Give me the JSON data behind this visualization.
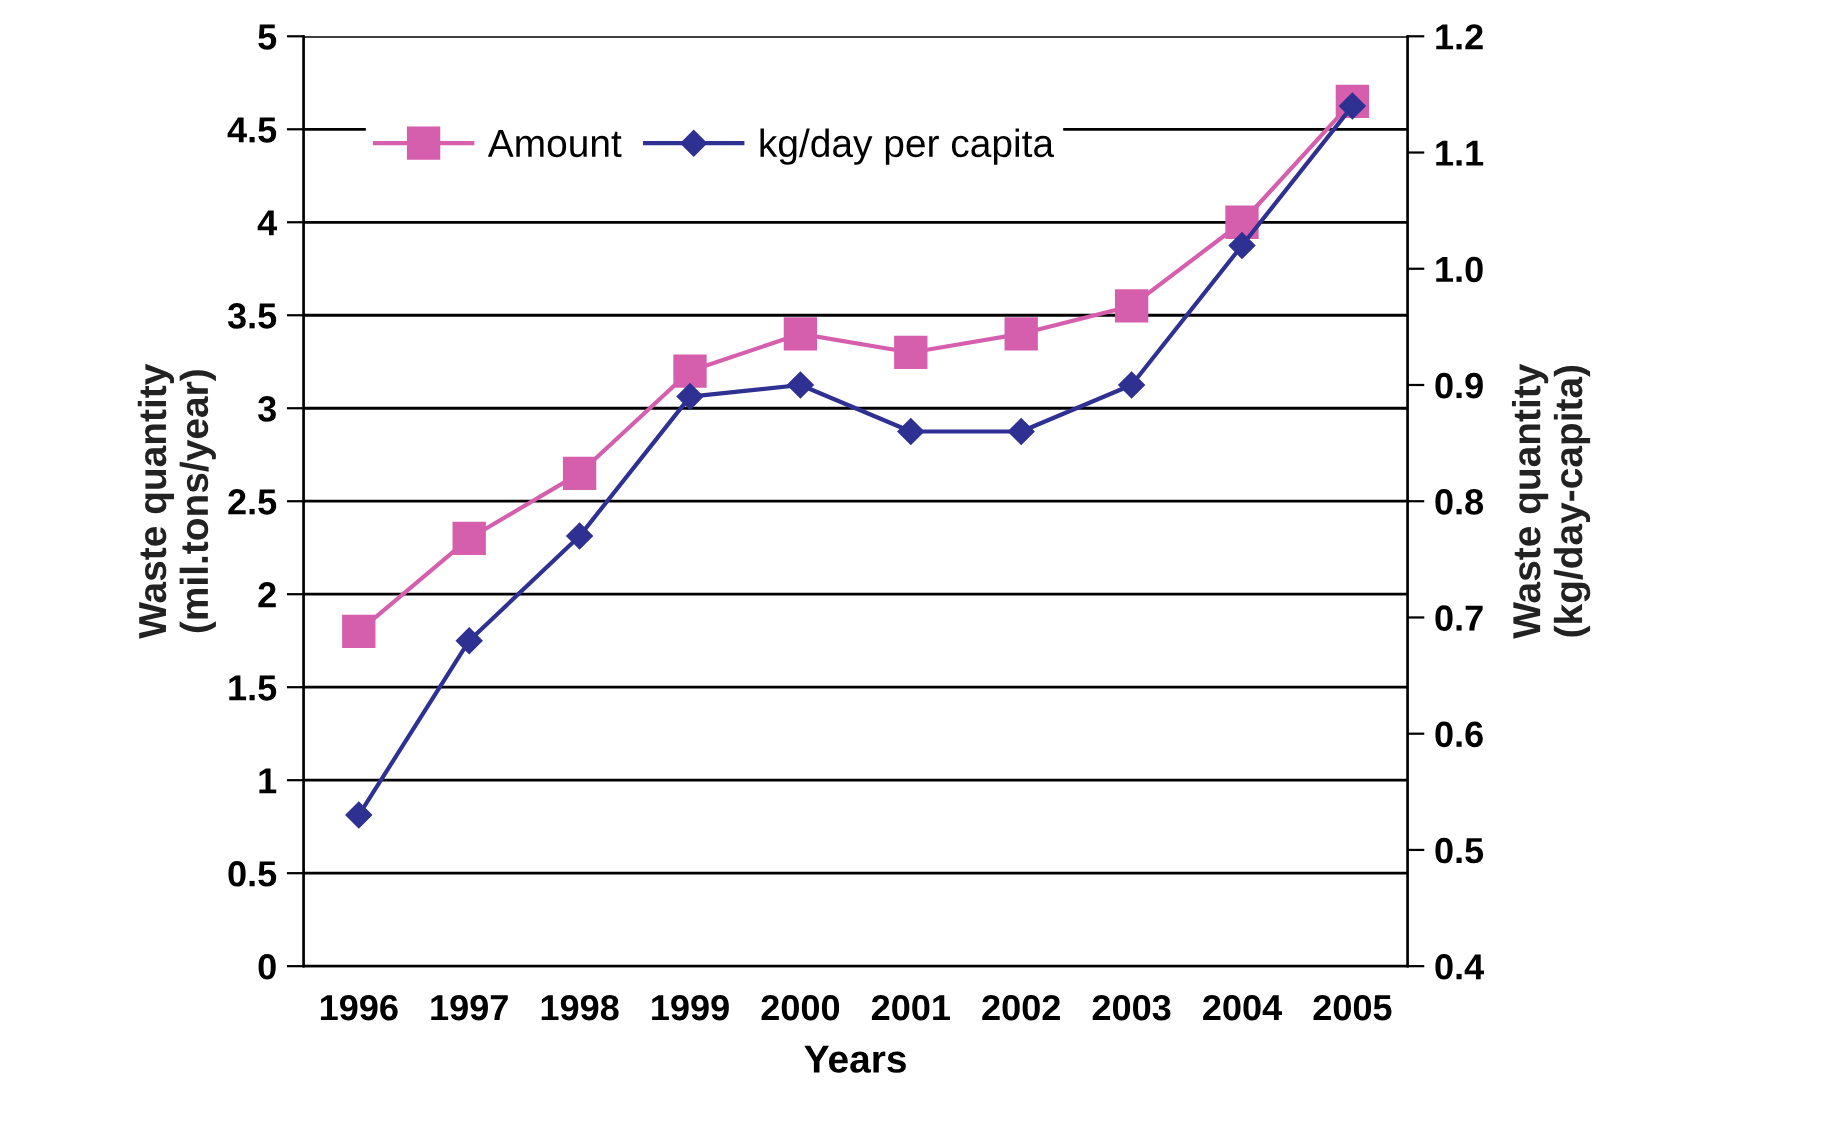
{
  "chart_data": {
    "type": "line",
    "xlabel": "Years",
    "ylabel": "Waste quantity\n(mil.tons/year)",
    "y2label": "Waste quantity\n(kg/day-capita)",
    "categories": [
      "1996",
      "1997",
      "1998",
      "1999",
      "2000",
      "2001",
      "2002",
      "2003",
      "2004",
      "2005"
    ],
    "series": [
      {
        "name": "Amount",
        "color": "#d65fad",
        "marker": "square",
        "values": [
          1.8,
          2.3,
          2.65,
          3.2,
          3.4,
          3.3,
          3.4,
          3.55,
          4.0,
          4.65
        ]
      },
      {
        "name": "kg/day per capita",
        "color": "#2e3192",
        "marker": "diamond",
        "axis": "y2",
        "values": [
          0.53,
          0.68,
          0.77,
          0.89,
          0.9,
          0.86,
          0.86,
          0.9,
          1.02,
          1.14
        ]
      }
    ],
    "ylim": [
      0,
      5
    ],
    "yticks": [
      0,
      0.5,
      1,
      1.5,
      2,
      2.5,
      3,
      3.5,
      4,
      4.5,
      5
    ],
    "y2lim": [
      0.4,
      1.2
    ],
    "y2ticks": [
      0.4,
      0.5,
      0.6,
      0.7,
      0.8,
      0.9,
      {
        "value": 1.0,
        "label": "1.0"
      },
      1.1,
      1.2
    ],
    "grid": "y",
    "legend": "top left",
    "line_style": "solid"
  }
}
